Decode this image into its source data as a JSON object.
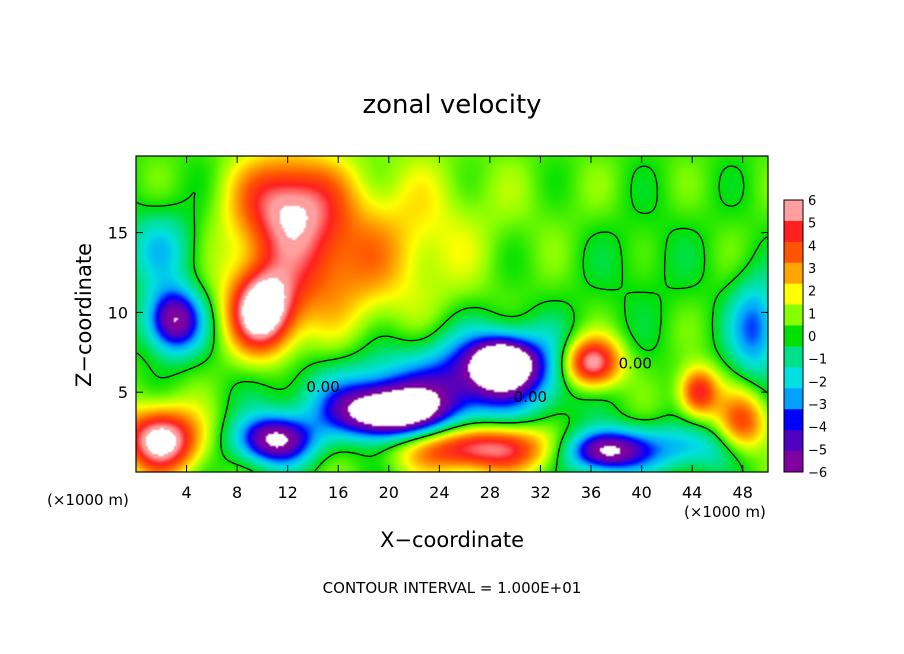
{
  "chart_data": {
    "type": "heatmap",
    "title": "zonal velocity",
    "xlabel": "X−coordinate",
    "ylabel": "Z−coordinate",
    "x_unit_label": "(×1000 m)",
    "x_unit_label_right": "(×1000 m)",
    "footer": "CONTOUR INTERVAL = 1.000E+01",
    "contour_label": "0.00",
    "xlim": [
      0,
      50
    ],
    "ylim": [
      0,
      19.8
    ],
    "x_ticks": [
      4,
      8,
      12,
      16,
      20,
      24,
      28,
      32,
      36,
      40,
      44,
      48
    ],
    "y_ticks": [
      5,
      10,
      15
    ],
    "colorbar": {
      "levels": [
        6,
        5,
        4,
        3,
        2,
        1,
        0,
        -1,
        -2,
        -3,
        -4,
        -5,
        -6
      ],
      "labels": [
        "6",
        "5",
        "4",
        "3",
        "2",
        "1",
        "0",
        "−1",
        "−2",
        "−3",
        "−4",
        "−5",
        "−6"
      ],
      "colors": [
        "#ff9f9f",
        "#ff2020",
        "#ff5500",
        "#ffa500",
        "#ffff00",
        "#88ff00",
        "#00e000",
        "#00e08a",
        "#00e0e0",
        "#00a0ff",
        "#0000ff",
        "#5000c0",
        "#8000a0"
      ]
    },
    "field_blobs": [
      {
        "x": 12,
        "z": 17,
        "rx": 4,
        "rz": 3,
        "value": 5
      },
      {
        "x": 14,
        "z": 13,
        "rx": 6,
        "rz": 4,
        "value": 3.5
      },
      {
        "x": 22,
        "z": 15,
        "rx": 6,
        "rz": 5,
        "value": 1.5
      },
      {
        "x": 33,
        "z": 17,
        "rx": 6,
        "rz": 3,
        "value": 0.3
      },
      {
        "x": 10,
        "z": 10,
        "rx": 2.5,
        "rz": 2.5,
        "value": 7
      },
      {
        "x": 3,
        "z": 9.5,
        "rx": 2.2,
        "rz": 2,
        "value": -7
      },
      {
        "x": 2,
        "z": 14,
        "rx": 3,
        "rz": 2.5,
        "value": -2.5
      },
      {
        "x": 49,
        "z": 9,
        "rx": 2,
        "rz": 3,
        "value": -4
      },
      {
        "x": 29,
        "z": 6.5,
        "rx": 6,
        "rz": 2.5,
        "value": -5
      },
      {
        "x": 29,
        "z": 6.8,
        "rx": 2.2,
        "rz": 1.4,
        "value": -7
      },
      {
        "x": 20,
        "z": 3.7,
        "rx": 4,
        "rz": 1.5,
        "value": -7
      },
      {
        "x": 21,
        "z": 4.5,
        "rx": 8,
        "rz": 2.5,
        "value": -4
      },
      {
        "x": 36,
        "z": 6.8,
        "rx": 2.3,
        "rz": 1.6,
        "value": 7
      },
      {
        "x": 44.5,
        "z": 5,
        "rx": 1.5,
        "rz": 1.5,
        "value": 5
      },
      {
        "x": 2,
        "z": 2,
        "rx": 3,
        "rz": 2,
        "value": 7
      },
      {
        "x": 11,
        "z": 2,
        "rx": 3,
        "rz": 1.5,
        "value": -7
      },
      {
        "x": 27,
        "z": 1.5,
        "rx": 6,
        "rz": 1.5,
        "value": 6
      },
      {
        "x": 37,
        "z": 1.3,
        "rx": 3,
        "rz": 1.3,
        "value": -7
      },
      {
        "x": 43,
        "z": 1.5,
        "rx": 5,
        "rz": 1.5,
        "value": -3
      },
      {
        "x": 48,
        "z": 3,
        "rx": 2,
        "rz": 2,
        "value": 4
      },
      {
        "x": 40,
        "z": 13,
        "rx": 5,
        "rz": 4,
        "value": -0.5
      }
    ]
  }
}
